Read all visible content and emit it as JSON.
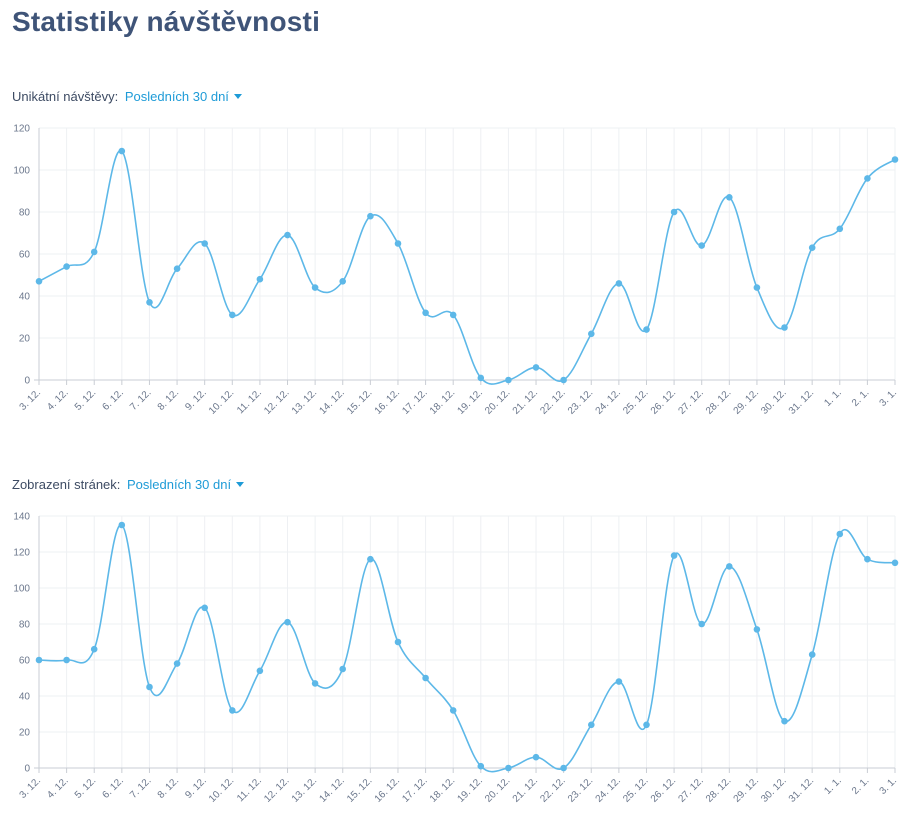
{
  "page": {
    "title": "Statistiky návštěvnosti"
  },
  "sections": [
    {
      "label": "Unikátní návštěvy:",
      "range": "Posledních 30 dní"
    },
    {
      "label": "Zobrazení stránek:",
      "range": "Posledních 30 dní"
    }
  ],
  "colors": {
    "line": "#5db8e8",
    "grid": "#eef0f3",
    "axis": "#c9cdd4",
    "accent": "#1e9bd7",
    "title": "#3f5478"
  },
  "chart_data": [
    {
      "type": "line",
      "categories": [
        "3. 12.",
        "4. 12.",
        "5. 12.",
        "6. 12.",
        "7. 12.",
        "8. 12.",
        "9. 12.",
        "10. 12.",
        "11. 12.",
        "12. 12.",
        "13. 12.",
        "14. 12.",
        "15. 12.",
        "16. 12.",
        "17. 12.",
        "18. 12.",
        "19. 12.",
        "20. 12.",
        "21. 12.",
        "22. 12.",
        "23. 12.",
        "24. 12.",
        "25. 12.",
        "26. 12.",
        "27. 12.",
        "28. 12.",
        "29. 12.",
        "30. 12.",
        "31. 12.",
        "1. 1.",
        "2. 1.",
        "3. 1."
      ],
      "series": [
        {
          "values": [
            47,
            54,
            61,
            109,
            37,
            53,
            65,
            31,
            48,
            69,
            44,
            47,
            78,
            65,
            32,
            31,
            1,
            0,
            6,
            0,
            22,
            46,
            24,
            80,
            64,
            87,
            44,
            25,
            63,
            72,
            96,
            105
          ]
        }
      ],
      "ylim": [
        0,
        120
      ],
      "yticks": [
        0,
        20,
        40,
        60,
        80,
        100,
        120
      ],
      "grid": true
    },
    {
      "type": "line",
      "categories": [
        "3. 12.",
        "4. 12.",
        "5. 12.",
        "6. 12.",
        "7. 12.",
        "8. 12.",
        "9. 12.",
        "10. 12.",
        "11. 12.",
        "12. 12.",
        "13. 12.",
        "14. 12.",
        "15. 12.",
        "16. 12.",
        "17. 12.",
        "18. 12.",
        "19. 12.",
        "20. 12.",
        "21. 12.",
        "22. 12.",
        "23. 12.",
        "24. 12.",
        "25. 12.",
        "26. 12.",
        "27. 12.",
        "28. 12.",
        "29. 12.",
        "30. 12.",
        "31. 12.",
        "1. 1.",
        "2. 1.",
        "3. 1."
      ],
      "series": [
        {
          "values": [
            60,
            60,
            66,
            135,
            45,
            58,
            89,
            32,
            54,
            81,
            47,
            55,
            116,
            70,
            50,
            32,
            1,
            0,
            6,
            0,
            24,
            48,
            24,
            118,
            80,
            112,
            77,
            26,
            63,
            130,
            116,
            114
          ]
        }
      ],
      "ylim": [
        0,
        140
      ],
      "yticks": [
        0,
        20,
        40,
        60,
        80,
        100,
        120,
        140
      ],
      "grid": true
    }
  ]
}
